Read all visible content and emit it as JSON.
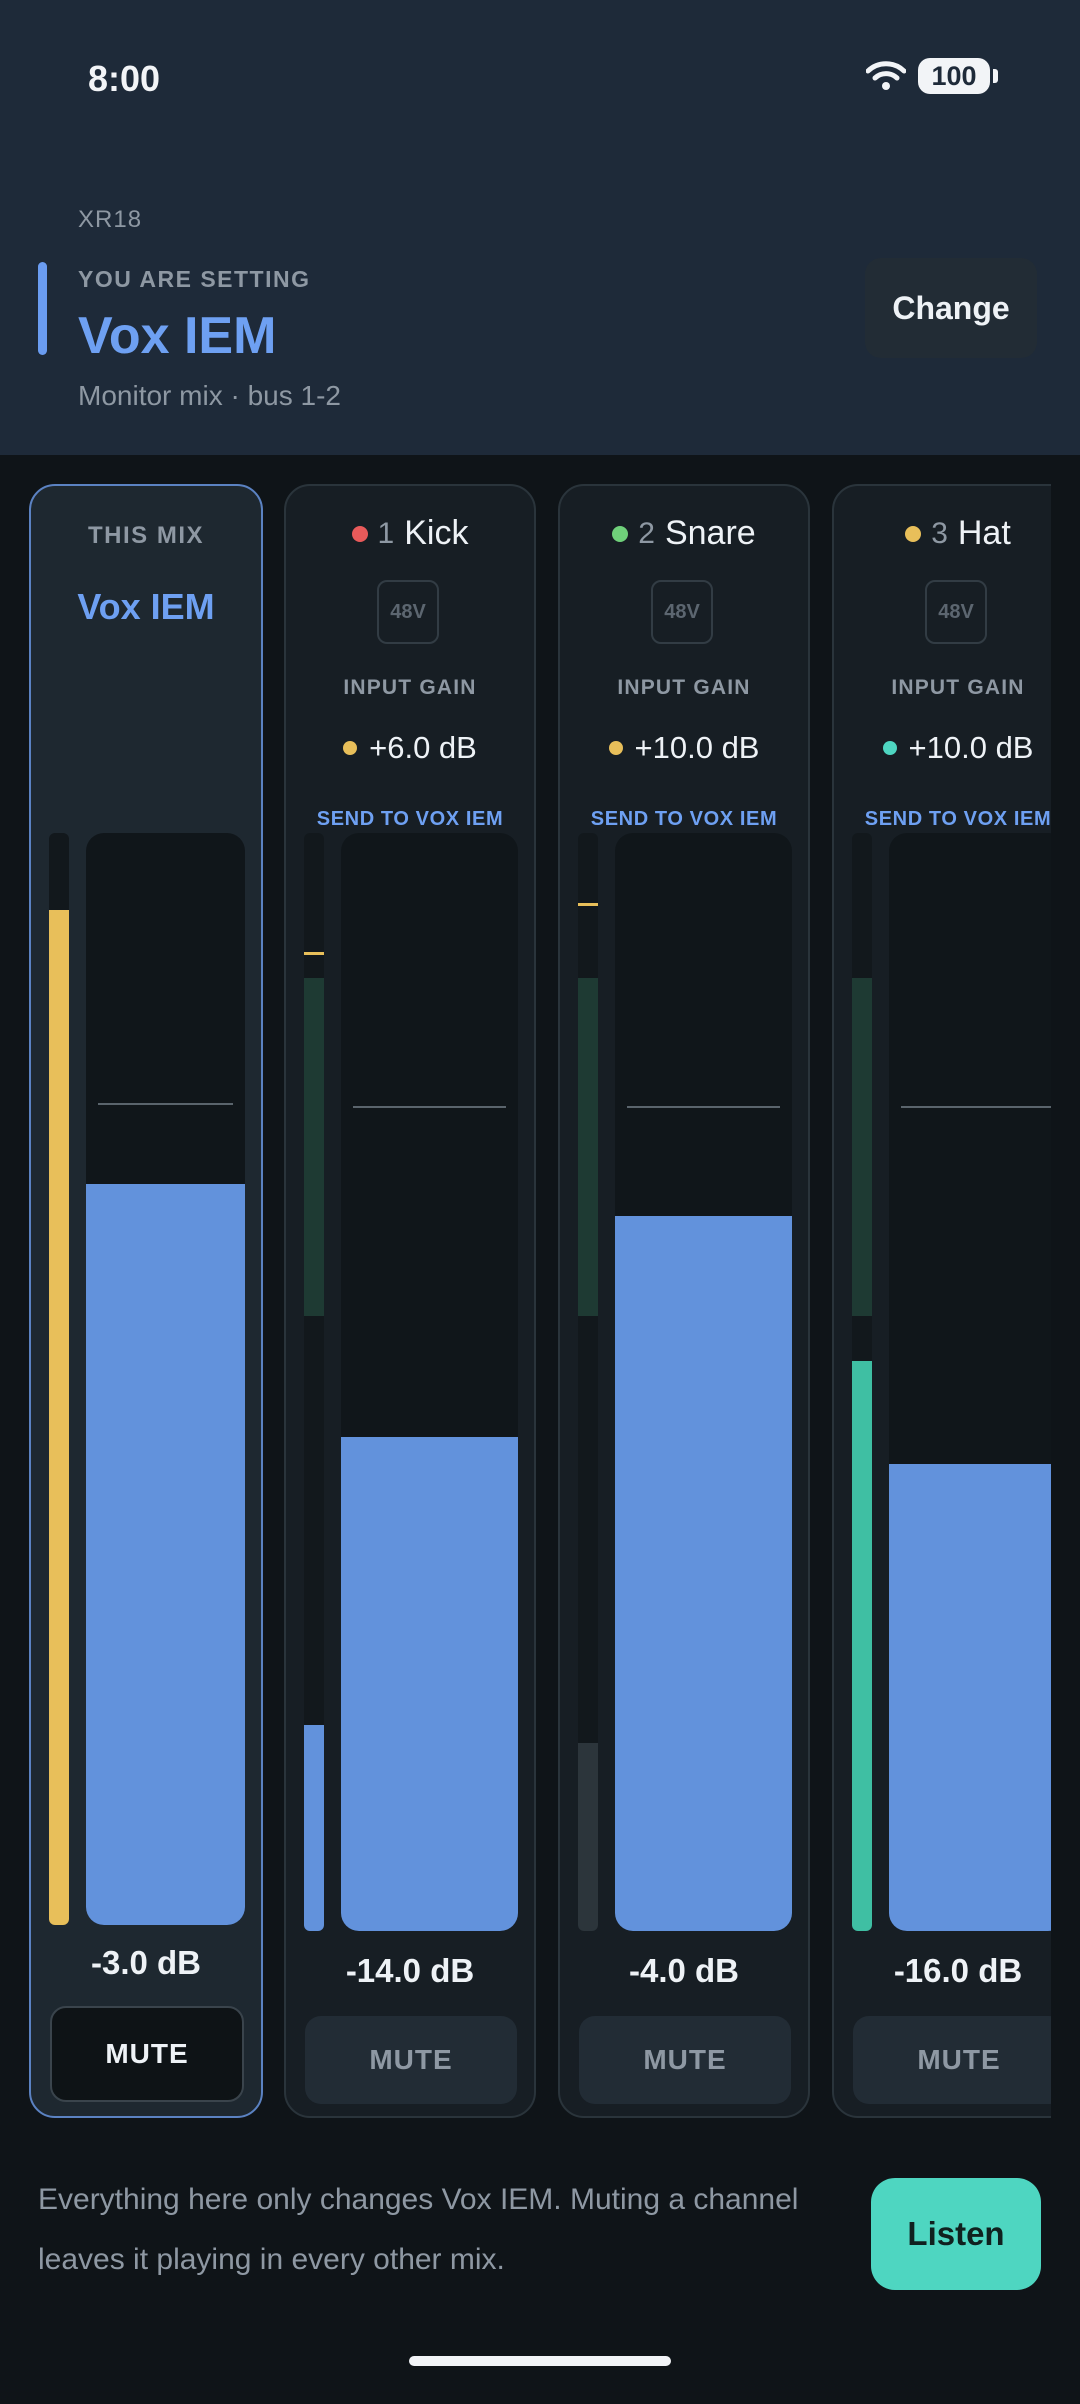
{
  "status_bar": {
    "time": "8:00",
    "battery": "100",
    "wifi_icon": "wifi-icon"
  },
  "header": {
    "device": "XR18",
    "eyebrow": "YOU ARE SETTING",
    "mix_name": "Vox IEM",
    "subtitle": "Monitor mix · bus 1-2",
    "change_label": "Change"
  },
  "master": {
    "label": "THIS MIX",
    "name": "Vox IEM",
    "level_db": "-3.0 dB",
    "mute_label": "MUTE",
    "meter_color": "#e8bf5a"
  },
  "channels": [
    {
      "number": "1",
      "name": "Kick",
      "dot_color": "#e85a5a",
      "phantom": "48V",
      "gain_label": "INPUT GAIN",
      "gain_value": "+6.0 dB",
      "gain_dot_color": "#e8bf5a",
      "send_label": "SEND TO VOX IEM",
      "level_db": "-14.0 dB",
      "mute_label": "MUTE"
    },
    {
      "number": "2",
      "name": "Snare",
      "dot_color": "#6fd07a",
      "phantom": "48V",
      "gain_label": "INPUT GAIN",
      "gain_value": "+10.0 dB",
      "gain_dot_color": "#e8bf5a",
      "send_label": "SEND TO VOX IEM",
      "level_db": "-4.0 dB",
      "mute_label": "MUTE"
    },
    {
      "number": "3",
      "name": "Hat",
      "dot_color": "#e8bf5a",
      "phantom": "48V",
      "gain_label": "INPUT GAIN",
      "gain_value": "+10.0 dB",
      "gain_dot_color": "#4ed6c1",
      "send_label": "SEND TO VOX IEM",
      "level_db": "-16.0 dB",
      "mute_label": "MUTE"
    }
  ],
  "footer": {
    "note": "Everything here only changes Vox IEM. Muting a channel leaves it playing in every other mix.",
    "listen_label": "Listen"
  }
}
